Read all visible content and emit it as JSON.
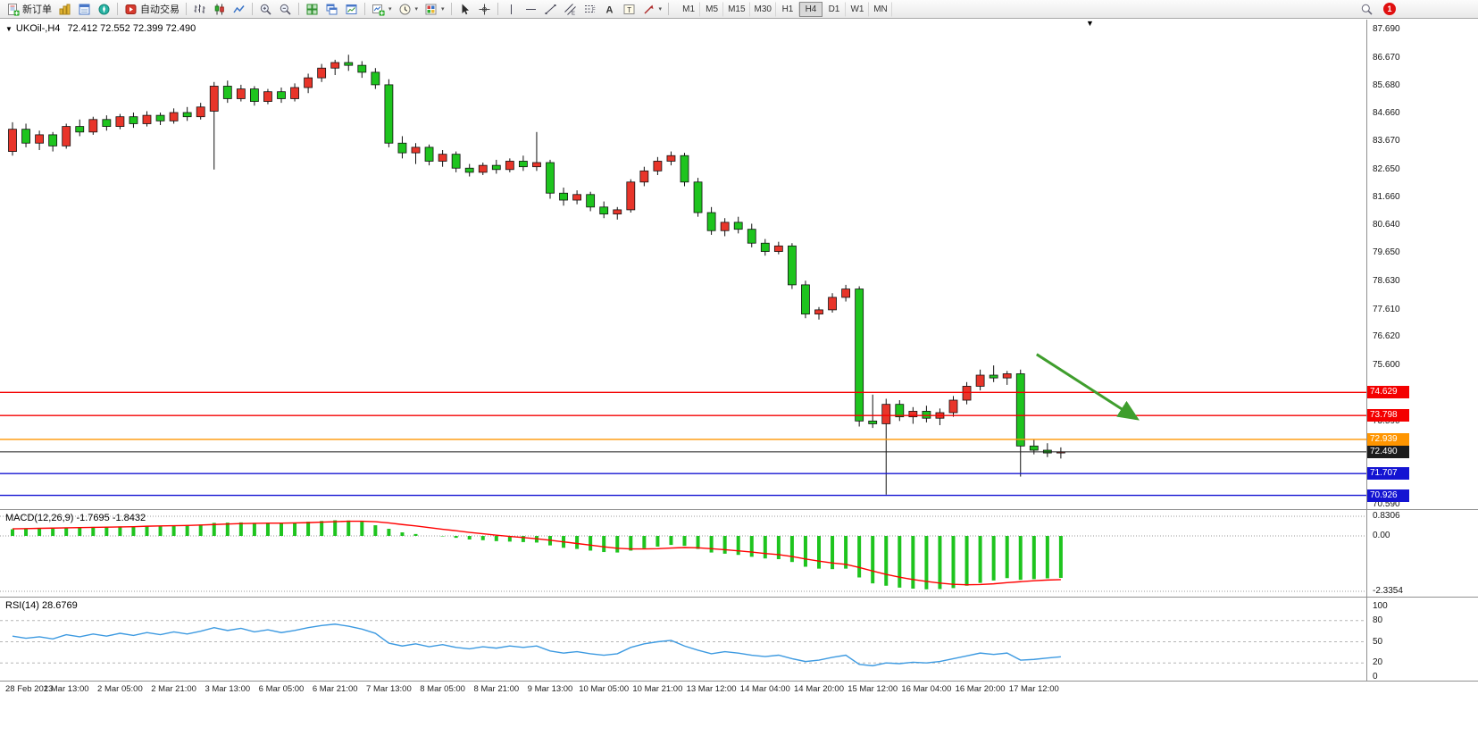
{
  "toolbar": {
    "new_order_label": "新订单",
    "autotrade_label": "自动交易",
    "timeframes": [
      "M1",
      "M5",
      "M15",
      "M30",
      "H1",
      "H4",
      "D1",
      "W1",
      "MN"
    ],
    "active_timeframe": "H4",
    "notification_count": "1"
  },
  "glyphs": {
    "caret_down": "▾",
    "symbol_caret": "▼",
    "shift_marker": "▼",
    "text_tool": "A",
    "label_tool": "T",
    "channel_suffix": "E",
    "fibonacci_suffix": "F"
  },
  "colors": {
    "bull": "#e8352a",
    "bear": "#1ec41e",
    "wick": "#111111",
    "level_red": "#f40000",
    "level_orange": "#ff9500",
    "level_blue": "#1414d2",
    "bid_black": "#1c1c1c",
    "macd_histogram": "#1ec41e",
    "macd_signal": "#ff0000",
    "rsi_line": "#3d9ae1",
    "arrow_green": "#3f9e2d"
  },
  "chart_data": {
    "type": "candlestick",
    "symbol": "UKOil-,H4",
    "ohlc_display": "72.412 72.552 72.399 72.490",
    "price_scale_labels": [
      "87.690",
      "86.670",
      "85.680",
      "84.660",
      "83.670",
      "82.650",
      "81.660",
      "80.640",
      "79.650",
      "78.630",
      "77.610",
      "76.620",
      "75.600",
      "74.610",
      "73.590",
      "72.570",
      "71.580",
      "70.590"
    ],
    "time_labels": [
      "28 Feb 2023",
      "1 Mar 13:00",
      "2 Mar 05:00",
      "2 Mar 21:00",
      "3 Mar 13:00",
      "6 Mar 05:00",
      "6 Mar 21:00",
      "7 Mar 13:00",
      "8 Mar 05:00",
      "8 Mar 21:00",
      "9 Mar 13:00",
      "10 Mar 05:00",
      "10 Mar 21:00",
      "13 Mar 12:00",
      "14 Mar 04:00",
      "14 Mar 20:00",
      "15 Mar 12:00",
      "16 Mar 04:00",
      "16 Mar 20:00",
      "17 Mar 12:00"
    ],
    "candles": [
      [
        83.3,
        84.35,
        83.15,
        84.1
      ],
      [
        84.1,
        84.3,
        83.45,
        83.6
      ],
      [
        83.6,
        84.05,
        83.35,
        83.9
      ],
      [
        83.9,
        84.0,
        83.3,
        83.5
      ],
      [
        83.5,
        84.3,
        83.4,
        84.2
      ],
      [
        84.2,
        84.45,
        83.85,
        84.0
      ],
      [
        84.0,
        84.55,
        83.9,
        84.45
      ],
      [
        84.45,
        84.6,
        84.05,
        84.2
      ],
      [
        84.2,
        84.65,
        84.1,
        84.55
      ],
      [
        84.55,
        84.7,
        84.15,
        84.3
      ],
      [
        84.3,
        84.75,
        84.2,
        84.6
      ],
      [
        84.6,
        84.7,
        84.25,
        84.4
      ],
      [
        84.4,
        84.85,
        84.3,
        84.7
      ],
      [
        84.7,
        84.9,
        84.4,
        84.55
      ],
      [
        84.55,
        85.05,
        84.45,
        84.9
      ],
      [
        84.75,
        85.8,
        82.65,
        85.65
      ],
      [
        85.65,
        85.85,
        85.05,
        85.2
      ],
      [
        85.2,
        85.7,
        85.1,
        85.55
      ],
      [
        85.55,
        85.65,
        84.95,
        85.1
      ],
      [
        85.1,
        85.55,
        85.0,
        85.45
      ],
      [
        85.45,
        85.6,
        85.05,
        85.2
      ],
      [
        85.2,
        85.75,
        85.1,
        85.6
      ],
      [
        85.6,
        86.1,
        85.4,
        85.95
      ],
      [
        85.95,
        86.45,
        85.8,
        86.3
      ],
      [
        86.3,
        86.6,
        86.05,
        86.5
      ],
      [
        86.5,
        86.78,
        86.2,
        86.4
      ],
      [
        86.4,
        86.55,
        85.95,
        86.15
      ],
      [
        86.15,
        86.3,
        85.55,
        85.7
      ],
      [
        85.7,
        85.9,
        83.45,
        83.6
      ],
      [
        83.6,
        83.85,
        83.05,
        83.25
      ],
      [
        83.25,
        83.6,
        82.85,
        83.45
      ],
      [
        83.45,
        83.55,
        82.8,
        82.95
      ],
      [
        82.95,
        83.35,
        82.75,
        83.2
      ],
      [
        83.2,
        83.3,
        82.55,
        82.7
      ],
      [
        82.7,
        82.85,
        82.4,
        82.55
      ],
      [
        82.55,
        82.9,
        82.45,
        82.8
      ],
      [
        82.8,
        83.0,
        82.5,
        82.65
      ],
      [
        82.65,
        83.05,
        82.55,
        82.95
      ],
      [
        82.95,
        83.15,
        82.6,
        82.75
      ],
      [
        82.75,
        84.0,
        82.6,
        82.9
      ],
      [
        82.9,
        83.0,
        81.6,
        81.8
      ],
      [
        81.8,
        82.0,
        81.35,
        81.55
      ],
      [
        81.55,
        81.9,
        81.4,
        81.75
      ],
      [
        81.75,
        81.85,
        81.15,
        81.3
      ],
      [
        81.3,
        81.5,
        80.9,
        81.05
      ],
      [
        81.05,
        81.3,
        80.85,
        81.2
      ],
      [
        81.2,
        82.3,
        81.1,
        82.2
      ],
      [
        82.2,
        82.75,
        82.05,
        82.6
      ],
      [
        82.6,
        83.1,
        82.45,
        82.95
      ],
      [
        82.95,
        83.3,
        82.8,
        83.15
      ],
      [
        83.15,
        83.25,
        82.05,
        82.2
      ],
      [
        82.2,
        82.35,
        80.95,
        81.1
      ],
      [
        81.1,
        81.3,
        80.3,
        80.45
      ],
      [
        80.45,
        80.9,
        80.25,
        80.75
      ],
      [
        80.75,
        80.95,
        80.35,
        80.5
      ],
      [
        80.5,
        80.7,
        79.85,
        80.0
      ],
      [
        80.0,
        80.15,
        79.55,
        79.7
      ],
      [
        79.7,
        80.05,
        79.6,
        79.9
      ],
      [
        79.9,
        80.0,
        78.35,
        78.5
      ],
      [
        78.5,
        78.65,
        77.3,
        77.45
      ],
      [
        77.45,
        77.7,
        77.25,
        77.6
      ],
      [
        77.6,
        78.2,
        77.5,
        78.05
      ],
      [
        78.05,
        78.5,
        77.9,
        78.35
      ],
      [
        78.35,
        78.45,
        73.4,
        73.6
      ],
      [
        73.6,
        74.55,
        73.35,
        73.5
      ],
      [
        73.5,
        74.4,
        70.95,
        74.2
      ],
      [
        74.2,
        74.35,
        73.6,
        73.75
      ],
      [
        73.75,
        74.1,
        73.5,
        73.95
      ],
      [
        73.95,
        74.15,
        73.55,
        73.7
      ],
      [
        73.7,
        74.05,
        73.45,
        73.9
      ],
      [
        73.9,
        74.5,
        73.75,
        74.35
      ],
      [
        74.35,
        75.0,
        74.2,
        74.85
      ],
      [
        74.85,
        75.45,
        74.7,
        75.25
      ],
      [
        75.25,
        75.6,
        75.0,
        75.15
      ],
      [
        75.15,
        75.4,
        74.9,
        75.3
      ],
      [
        75.3,
        75.45,
        71.6,
        72.7
      ],
      [
        72.7,
        72.95,
        72.4,
        72.55
      ],
      [
        72.55,
        72.8,
        72.3,
        72.45
      ],
      [
        72.45,
        72.65,
        72.25,
        72.49
      ]
    ],
    "levels": [
      {
        "value": 74.629,
        "badge": "74.629",
        "color_key": "level_red"
      },
      {
        "value": 73.798,
        "badge": "73.798",
        "color_key": "level_red"
      },
      {
        "value": 72.939,
        "badge": "72.939",
        "color_key": "level_orange"
      },
      {
        "value": 72.49,
        "badge": "72.490",
        "color_key": "bid_black",
        "role": "bid-price"
      },
      {
        "value": 71.707,
        "badge": "71.707",
        "color_key": "level_blue"
      },
      {
        "value": 70.926,
        "badge": "70.926",
        "color_key": "level_blue"
      }
    ],
    "arrow": {
      "from": {
        "i": 76.2,
        "p": 76.0
      },
      "to": {
        "i": 83.6,
        "p": 73.7
      }
    },
    "macd": {
      "display": "MACD(12,26,9) -1.7695 -1.8432",
      "scale_labels": [
        "0.8306",
        "0.00",
        "-2.3354"
      ],
      "histogram": [
        0.28,
        0.3,
        0.32,
        0.3,
        0.34,
        0.36,
        0.38,
        0.37,
        0.4,
        0.41,
        0.43,
        0.42,
        0.45,
        0.46,
        0.48,
        0.55,
        0.56,
        0.57,
        0.55,
        0.56,
        0.54,
        0.56,
        0.6,
        0.63,
        0.66,
        0.65,
        0.6,
        0.45,
        0.3,
        0.15,
        0.08,
        0.0,
        -0.02,
        -0.08,
        -0.15,
        -0.18,
        -0.22,
        -0.24,
        -0.26,
        -0.28,
        -0.4,
        -0.5,
        -0.55,
        -0.62,
        -0.68,
        -0.7,
        -0.62,
        -0.52,
        -0.45,
        -0.38,
        -0.42,
        -0.55,
        -0.7,
        -0.75,
        -0.8,
        -0.88,
        -0.95,
        -0.98,
        -1.1,
        -1.3,
        -1.38,
        -1.4,
        -1.38,
        -1.75,
        -2.0,
        -2.1,
        -2.18,
        -2.22,
        -2.25,
        -2.24,
        -2.2,
        -2.1,
        -1.98,
        -1.88,
        -1.78,
        -1.85,
        -1.82,
        -1.79,
        -1.7695
      ],
      "signal": [
        0.3,
        0.31,
        0.32,
        0.33,
        0.34,
        0.35,
        0.36,
        0.37,
        0.38,
        0.39,
        0.41,
        0.42,
        0.43,
        0.44,
        0.46,
        0.48,
        0.5,
        0.52,
        0.53,
        0.54,
        0.54,
        0.55,
        0.56,
        0.58,
        0.6,
        0.62,
        0.62,
        0.6,
        0.55,
        0.48,
        0.42,
        0.35,
        0.28,
        0.22,
        0.15,
        0.09,
        0.03,
        -0.02,
        -0.07,
        -0.12,
        -0.18,
        -0.25,
        -0.32,
        -0.39,
        -0.46,
        -0.52,
        -0.55,
        -0.55,
        -0.54,
        -0.51,
        -0.49,
        -0.5,
        -0.54,
        -0.58,
        -0.63,
        -0.68,
        -0.74,
        -0.79,
        -0.87,
        -0.97,
        -1.06,
        -1.14,
        -1.2,
        -1.33,
        -1.48,
        -1.62,
        -1.74,
        -1.84,
        -1.92,
        -1.99,
        -2.04,
        -2.06,
        -2.05,
        -2.02,
        -1.97,
        -1.93,
        -1.89,
        -1.86,
        -1.8432
      ]
    },
    "rsi": {
      "display": "RSI(14) 28.6769",
      "scale_labels": [
        "100",
        "80",
        "50",
        "20",
        "0"
      ],
      "level_lines": [
        80,
        50,
        20
      ],
      "values": [
        58,
        55,
        57,
        54,
        60,
        57,
        61,
        58,
        62,
        59,
        63,
        60,
        64,
        61,
        65,
        70,
        66,
        69,
        64,
        67,
        63,
        66,
        70,
        73,
        75,
        72,
        68,
        62,
        48,
        44,
        47,
        43,
        46,
        42,
        40,
        43,
        41,
        44,
        42,
        44,
        37,
        34,
        36,
        33,
        31,
        33,
        42,
        47,
        50,
        52,
        44,
        38,
        33,
        36,
        34,
        31,
        29,
        31,
        26,
        22,
        24,
        28,
        31,
        18,
        16,
        20,
        19,
        21,
        20,
        22,
        26,
        30,
        34,
        32,
        34,
        24,
        25,
        27,
        28.68
      ]
    }
  }
}
